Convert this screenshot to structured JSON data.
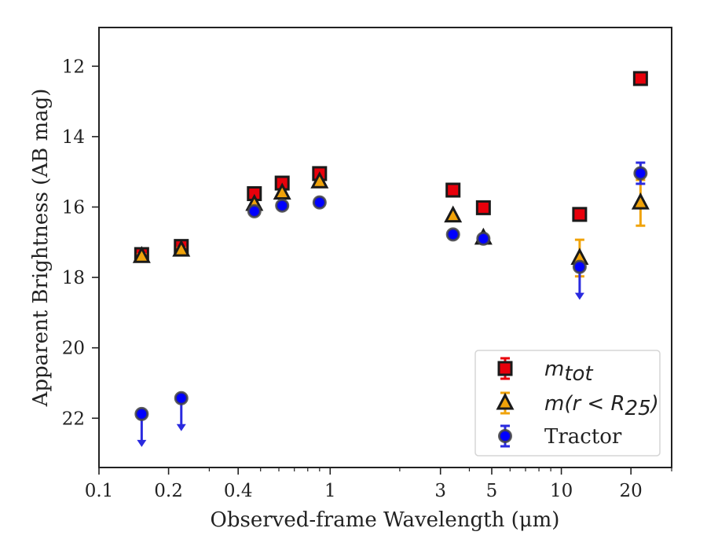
{
  "chart_data": {
    "type": "scatter",
    "title": "",
    "xlabel": "Observed-frame Wavelength (μm)",
    "ylabel": "Apparent Brightness (AB mag)",
    "xscale": "log",
    "xlim": [
      0.1,
      30
    ],
    "ylim": [
      23.4,
      10.9
    ],
    "y_inverted": true,
    "grid": false,
    "legend_position": "lower-right",
    "x_ticks": [
      {
        "value": 0.1,
        "label": "0.1"
      },
      {
        "value": 0.2,
        "label": "0.2"
      },
      {
        "value": 0.4,
        "label": "0.4"
      },
      {
        "value": 1,
        "label": "1"
      },
      {
        "value": 3,
        "label": "3"
      },
      {
        "value": 5,
        "label": "5"
      },
      {
        "value": 10,
        "label": "10"
      },
      {
        "value": 20,
        "label": "20"
      }
    ],
    "y_ticks": [
      {
        "value": 12,
        "label": "12"
      },
      {
        "value": 14,
        "label": "14"
      },
      {
        "value": 16,
        "label": "16"
      },
      {
        "value": 18,
        "label": "18"
      },
      {
        "value": 20,
        "label": "20"
      },
      {
        "value": 22,
        "label": "22"
      }
    ],
    "series": [
      {
        "name": "m_tot",
        "legend_label": {
          "base": "m",
          "sub": "tot"
        },
        "marker": "square",
        "color": "#e8000b",
        "edge_color": "#1a1a1a",
        "points": [
          {
            "x": 0.153,
            "y": 17.35,
            "yerr": 0.08
          },
          {
            "x": 0.227,
            "y": 17.12,
            "yerr": 0.06
          },
          {
            "x": 0.47,
            "y": 15.62
          },
          {
            "x": 0.62,
            "y": 15.32
          },
          {
            "x": 0.9,
            "y": 15.05
          },
          {
            "x": 3.4,
            "y": 15.52
          },
          {
            "x": 4.6,
            "y": 16.02
          },
          {
            "x": 12.0,
            "y": 16.21
          },
          {
            "x": 22.0,
            "y": 12.35
          }
        ]
      },
      {
        "name": "m(r < R25)",
        "legend_label": {
          "base": "m(r < R",
          "sub": "25",
          "tail": ")"
        },
        "marker": "triangle",
        "color": "#f0a30a",
        "edge_color": "#1a1a1a",
        "points": [
          {
            "x": 0.153,
            "y": 17.4,
            "yerr": 0.06
          },
          {
            "x": 0.227,
            "y": 17.22,
            "yerr": 0.06
          },
          {
            "x": 0.47,
            "y": 15.92
          },
          {
            "x": 0.62,
            "y": 15.6
          },
          {
            "x": 0.9,
            "y": 15.28
          },
          {
            "x": 3.4,
            "y": 16.25
          },
          {
            "x": 4.6,
            "y": 16.88
          },
          {
            "x": 12.0,
            "y": 17.45,
            "yerr": 0.52
          },
          {
            "x": 22.0,
            "y": 15.88,
            "yerr": 0.65
          }
        ]
      },
      {
        "name": "Tractor",
        "marker": "circle",
        "color": "#0000ff",
        "edge_color": "#444444",
        "points": [
          {
            "x": 0.153,
            "y": 21.88,
            "upper_limit": true
          },
          {
            "x": 0.227,
            "y": 21.43,
            "upper_limit": true
          },
          {
            "x": 0.47,
            "y": 16.12
          },
          {
            "x": 0.62,
            "y": 15.96
          },
          {
            "x": 0.9,
            "y": 15.87
          },
          {
            "x": 3.4,
            "y": 16.78
          },
          {
            "x": 4.6,
            "y": 16.9
          },
          {
            "x": 12.0,
            "y": 17.7,
            "upper_limit": true
          },
          {
            "x": 22.0,
            "y": 15.04,
            "yerr": 0.3
          }
        ]
      }
    ]
  }
}
